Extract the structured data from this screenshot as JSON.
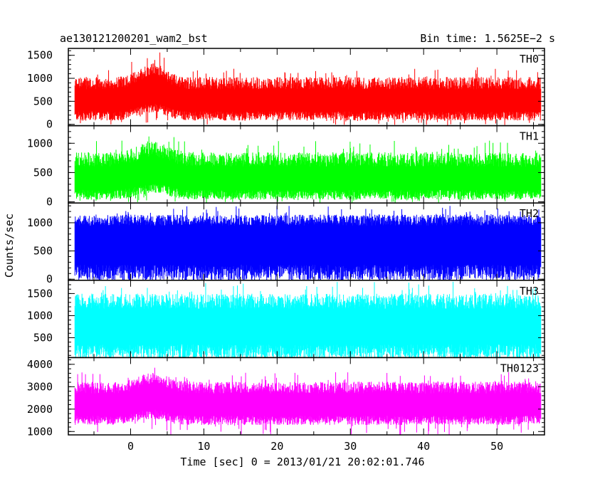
{
  "header": {
    "title_left": "ae130121200201_wam2_bst",
    "title_right": "Bin time: 1.5625E−2 s"
  },
  "chart_data": {
    "type": "line",
    "title": "ae130121200201_wam2_bst",
    "subtitle": "Bin time: 1.5625E−2 s",
    "xlabel": "Time [sec] 0 = 2013/01/21 20:02:01.746",
    "ylabel": "Counts/sec",
    "xlim": [
      -8.5,
      56.5
    ],
    "x_ticks": [
      0,
      10,
      20,
      30,
      40,
      50
    ],
    "x_tick_labels": [
      "0",
      "10",
      "20",
      "30",
      "40",
      "50"
    ],
    "data_range_x": [
      -7.6,
      56.0
    ],
    "bin_time_s": 0.015625,
    "grid": false,
    "panels": [
      {
        "name": "TH0",
        "color": "#ff0000",
        "ylim": [
          -30,
          1650
        ],
        "y_ticks": [
          0,
          500,
          1000,
          1500
        ],
        "y_tick_labels": [
          "0",
          "500",
          "1000",
          "1500"
        ],
        "baseline_low": 180,
        "baseline_high": 760,
        "spike_max": 1250,
        "burst_center": 3.0,
        "burst_width": 2.6,
        "burst_amp": 300,
        "x_sample": [
          -7.5,
          0,
          2,
          5,
          10,
          20,
          30,
          40,
          50,
          56
        ],
        "y_sample": [
          450,
          520,
          850,
          780,
          560,
          480,
          470,
          470,
          480,
          460
        ]
      },
      {
        "name": "TH1",
        "color": "#00ff00",
        "ylim": [
          -20,
          1300
        ],
        "y_ticks": [
          0,
          500,
          1000
        ],
        "y_tick_labels": [
          "0",
          "500",
          "1000"
        ],
        "baseline_low": 120,
        "baseline_high": 600,
        "spike_max": 1050,
        "burst_center": 3.0,
        "burst_width": 2.8,
        "burst_amp": 180,
        "x_sample": [
          -7.5,
          0,
          2,
          5,
          10,
          20,
          30,
          40,
          50,
          56
        ],
        "y_sample": [
          370,
          410,
          570,
          540,
          420,
          380,
          380,
          380,
          380,
          370
        ]
      },
      {
        "name": "TH2",
        "color": "#0000ff",
        "ylim": [
          -20,
          1350
        ],
        "y_ticks": [
          0,
          500,
          1000
        ],
        "y_tick_labels": [
          "0",
          "500",
          "1000"
        ],
        "baseline_low": 110,
        "baseline_high": 950,
        "spike_max": 1300,
        "burst_center": 3.0,
        "burst_width": 2.8,
        "burst_amp": 0,
        "x_sample": [
          -7.5,
          0,
          10,
          20,
          30,
          40,
          50,
          56
        ],
        "y_sample": [
          540,
          540,
          540,
          540,
          540,
          540,
          540,
          540
        ]
      },
      {
        "name": "TH3",
        "color": "#00ffff",
        "ylim": [
          50,
          1800
        ],
        "y_ticks": [
          500,
          1000,
          1500
        ],
        "y_tick_labels": [
          "500",
          "1000",
          "1500"
        ],
        "baseline_low": 180,
        "baseline_high": 1150,
        "spike_max": 1780,
        "burst_center": 3.0,
        "burst_width": 2.8,
        "burst_amp": 0,
        "x_sample": [
          -7.5,
          0,
          10,
          20,
          30,
          40,
          50,
          56
        ],
        "y_sample": [
          700,
          700,
          700,
          700,
          700,
          700,
          700,
          700
        ]
      },
      {
        "name": "TH0123",
        "color": "#ff00ff",
        "ylim": [
          850,
          4300
        ],
        "y_ticks": [
          1000,
          2000,
          3000,
          4000
        ],
        "y_tick_labels": [
          "1000",
          "2000",
          "3000",
          "4000"
        ],
        "baseline_low": 1500,
        "baseline_high": 2700,
        "spike_max": 3650,
        "burst_center": 3.0,
        "burst_width": 2.6,
        "burst_amp": 450,
        "x_sample": [
          -7.5,
          0,
          2,
          5,
          10,
          20,
          30,
          40,
          50,
          56
        ],
        "y_sample": [
          2050,
          2150,
          2600,
          2500,
          2200,
          2050,
          2030,
          2030,
          2040,
          2020
        ]
      }
    ]
  }
}
